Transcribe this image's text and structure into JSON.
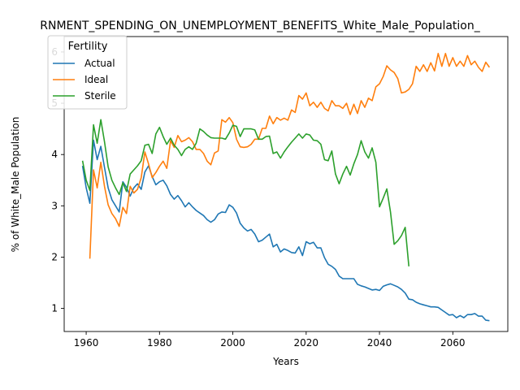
{
  "chart_data": {
    "type": "line",
    "title": "RNMENT_SPENDING_ON_UNEMPLOYMENT_BENEFITS_White_Male_Population_",
    "xlabel": "Years",
    "ylabel": "% of White_Male Population",
    "xlim": [
      1954,
      2075
    ],
    "ylim": [
      0.55,
      6.3
    ],
    "xticks": [
      1960,
      1980,
      2000,
      2020,
      2040,
      2060
    ],
    "yticks": [
      1,
      2,
      3,
      4,
      5,
      6
    ],
    "grid": false,
    "legend": {
      "title": "Fertility",
      "position": "top-left"
    },
    "series": [
      {
        "name": "Actual",
        "color": "#1f77b4",
        "x": [
          1959,
          1960,
          1961,
          1962,
          1963,
          1964,
          1965,
          1966,
          1967,
          1968,
          1969,
          1970,
          1971,
          1972,
          1973,
          1974,
          1975,
          1976,
          1977,
          1978,
          1979,
          1980,
          1981,
          1982,
          1983,
          1984,
          1985,
          1986,
          1987,
          1988,
          1989,
          1990,
          1991,
          1992,
          1993,
          1994,
          1995,
          1996,
          1997,
          1998,
          1999,
          2000,
          2001,
          2002,
          2003,
          2004,
          2005,
          2006,
          2007,
          2008,
          2009,
          2010,
          2011,
          2012,
          2013,
          2014,
          2015,
          2016,
          2017,
          2018,
          2019,
          2020,
          2021,
          2022,
          2023,
          2024,
          2025,
          2026,
          2027,
          2028,
          2029,
          2030,
          2031,
          2032,
          2033,
          2034,
          2035,
          2036,
          2037,
          2038,
          2039,
          2040,
          2041,
          2042,
          2043,
          2044,
          2045,
          2046,
          2047,
          2048,
          2049,
          2050,
          2051,
          2052,
          2053,
          2054,
          2055,
          2056,
          2057,
          2058,
          2059,
          2060,
          2061,
          2062,
          2063,
          2064,
          2065,
          2066,
          2067,
          2068,
          2069,
          2070
        ],
        "y": [
          3.78,
          3.35,
          3.05,
          4.28,
          3.9,
          4.16,
          3.75,
          3.35,
          3.12,
          3.0,
          2.88,
          3.47,
          3.36,
          3.19,
          3.35,
          3.43,
          3.32,
          3.66,
          3.78,
          3.57,
          3.41,
          3.47,
          3.5,
          3.39,
          3.22,
          3.13,
          3.2,
          3.1,
          2.98,
          3.06,
          2.98,
          2.91,
          2.86,
          2.81,
          2.73,
          2.68,
          2.73,
          2.84,
          2.88,
          2.87,
          3.02,
          2.97,
          2.86,
          2.66,
          2.57,
          2.51,
          2.54,
          2.45,
          2.3,
          2.33,
          2.39,
          2.45,
          2.2,
          2.25,
          2.1,
          2.16,
          2.13,
          2.09,
          2.08,
          2.2,
          2.03,
          2.3,
          2.26,
          2.29,
          2.18,
          2.18,
          1.99,
          1.86,
          1.82,
          1.76,
          1.63,
          1.58,
          1.58,
          1.58,
          1.58,
          1.47,
          1.44,
          1.42,
          1.39,
          1.36,
          1.37,
          1.35,
          1.43,
          1.46,
          1.48,
          1.45,
          1.42,
          1.37,
          1.3,
          1.18,
          1.17,
          1.12,
          1.09,
          1.07,
          1.05,
          1.03,
          1.03,
          1.02,
          0.97,
          0.92,
          0.87,
          0.88,
          0.82,
          0.86,
          0.82,
          0.88,
          0.88,
          0.9,
          0.85,
          0.85,
          0.77,
          0.76
        ]
      },
      {
        "name": "Ideal",
        "color": "#ff7f0e",
        "x": [
          1961,
          1962,
          1963,
          1964,
          1965,
          1966,
          1967,
          1968,
          1969,
          1970,
          1971,
          1972,
          1973,
          1974,
          1975,
          1976,
          1977,
          1978,
          1979,
          1980,
          1981,
          1982,
          1983,
          1984,
          1985,
          1986,
          1987,
          1988,
          1989,
          1990,
          1991,
          1992,
          1993,
          1994,
          1995,
          1996,
          1997,
          1998,
          1999,
          2000,
          2001,
          2002,
          2003,
          2004,
          2005,
          2006,
          2007,
          2008,
          2009,
          2010,
          2011,
          2012,
          2013,
          2014,
          2015,
          2016,
          2017,
          2018,
          2019,
          2020,
          2021,
          2022,
          2023,
          2024,
          2025,
          2026,
          2027,
          2028,
          2029,
          2030,
          2031,
          2032,
          2033,
          2034,
          2035,
          2036,
          2037,
          2038,
          2039,
          2040,
          2041,
          2042,
          2043,
          2044,
          2045,
          2046,
          2047,
          2048,
          2049,
          2050,
          2051,
          2052,
          2053,
          2054,
          2055,
          2056,
          2057,
          2058,
          2059,
          2060,
          2061,
          2062,
          2063,
          2064,
          2065,
          2066,
          2067,
          2068,
          2069,
          2070
        ],
        "y": [
          1.97,
          3.7,
          3.35,
          3.85,
          3.38,
          3.02,
          2.85,
          2.75,
          2.6,
          2.97,
          2.85,
          3.38,
          3.25,
          3.32,
          3.55,
          4.05,
          3.82,
          3.55,
          3.65,
          3.77,
          3.87,
          3.73,
          4.27,
          4.14,
          4.37,
          4.25,
          4.28,
          4.33,
          4.25,
          4.1,
          4.1,
          4.02,
          3.87,
          3.8,
          4.03,
          4.07,
          4.68,
          4.63,
          4.72,
          4.62,
          4.3,
          4.15,
          4.14,
          4.15,
          4.2,
          4.3,
          4.3,
          4.51,
          4.51,
          4.75,
          4.6,
          4.72,
          4.67,
          4.71,
          4.67,
          4.87,
          4.82,
          5.15,
          5.08,
          5.2,
          4.95,
          5.02,
          4.92,
          5.02,
          4.9,
          4.85,
          5.05,
          4.95,
          4.95,
          4.9,
          5.0,
          4.78,
          4.98,
          4.8,
          5.05,
          4.92,
          5.1,
          5.05,
          5.32,
          5.38,
          5.52,
          5.73,
          5.65,
          5.6,
          5.48,
          5.2,
          5.22,
          5.27,
          5.38,
          5.72,
          5.62,
          5.75,
          5.62,
          5.79,
          5.63,
          5.97,
          5.72,
          5.97,
          5.72,
          5.89,
          5.72,
          5.82,
          5.72,
          5.93,
          5.75,
          5.82,
          5.7,
          5.62,
          5.8,
          5.7
        ]
      },
      {
        "name": "Sterile",
        "color": "#2ca02c",
        "x": [
          1959,
          1960,
          1961,
          1962,
          1963,
          1964,
          1965,
          1966,
          1967,
          1968,
          1969,
          1970,
          1971,
          1972,
          1973,
          1974,
          1975,
          1976,
          1977,
          1978,
          1979,
          1980,
          1981,
          1982,
          1983,
          1984,
          1985,
          1986,
          1987,
          1988,
          1989,
          1990,
          1991,
          1992,
          1993,
          1994,
          1995,
          1996,
          1997,
          1998,
          1999,
          2000,
          2001,
          2002,
          2003,
          2004,
          2005,
          2006,
          2007,
          2008,
          2009,
          2010,
          2011,
          2012,
          2013,
          2014,
          2015,
          2016,
          2017,
          2018,
          2019,
          2020,
          2021,
          2022,
          2023,
          2024,
          2025,
          2026,
          2027,
          2028,
          2029,
          2030,
          2031,
          2032,
          2033,
          2034,
          2035,
          2036,
          2037,
          2038,
          2039,
          2040,
          2041,
          2042,
          2043,
          2044,
          2045,
          2046,
          2047,
          2048
        ],
        "y": [
          3.88,
          3.5,
          3.3,
          4.58,
          4.22,
          4.68,
          4.25,
          3.76,
          3.5,
          3.35,
          3.22,
          3.45,
          3.28,
          3.62,
          3.7,
          3.78,
          3.88,
          4.18,
          4.2,
          4.02,
          4.4,
          4.53,
          4.35,
          4.2,
          4.32,
          4.18,
          4.1,
          3.98,
          4.1,
          4.15,
          4.1,
          4.22,
          4.5,
          4.45,
          4.38,
          4.33,
          4.32,
          4.32,
          4.32,
          4.3,
          4.42,
          4.57,
          4.55,
          4.35,
          4.5,
          4.5,
          4.5,
          4.48,
          4.3,
          4.3,
          4.35,
          4.36,
          4.02,
          4.05,
          3.93,
          4.05,
          4.15,
          4.24,
          4.32,
          4.4,
          4.32,
          4.4,
          4.38,
          4.28,
          4.27,
          4.2,
          3.9,
          3.88,
          4.07,
          3.62,
          3.43,
          3.62,
          3.77,
          3.6,
          3.82,
          4.0,
          4.27,
          4.05,
          3.93,
          4.13,
          3.85,
          2.98,
          3.15,
          3.33,
          2.88,
          2.25,
          2.32,
          2.42,
          2.58,
          1.82
        ]
      }
    ]
  }
}
